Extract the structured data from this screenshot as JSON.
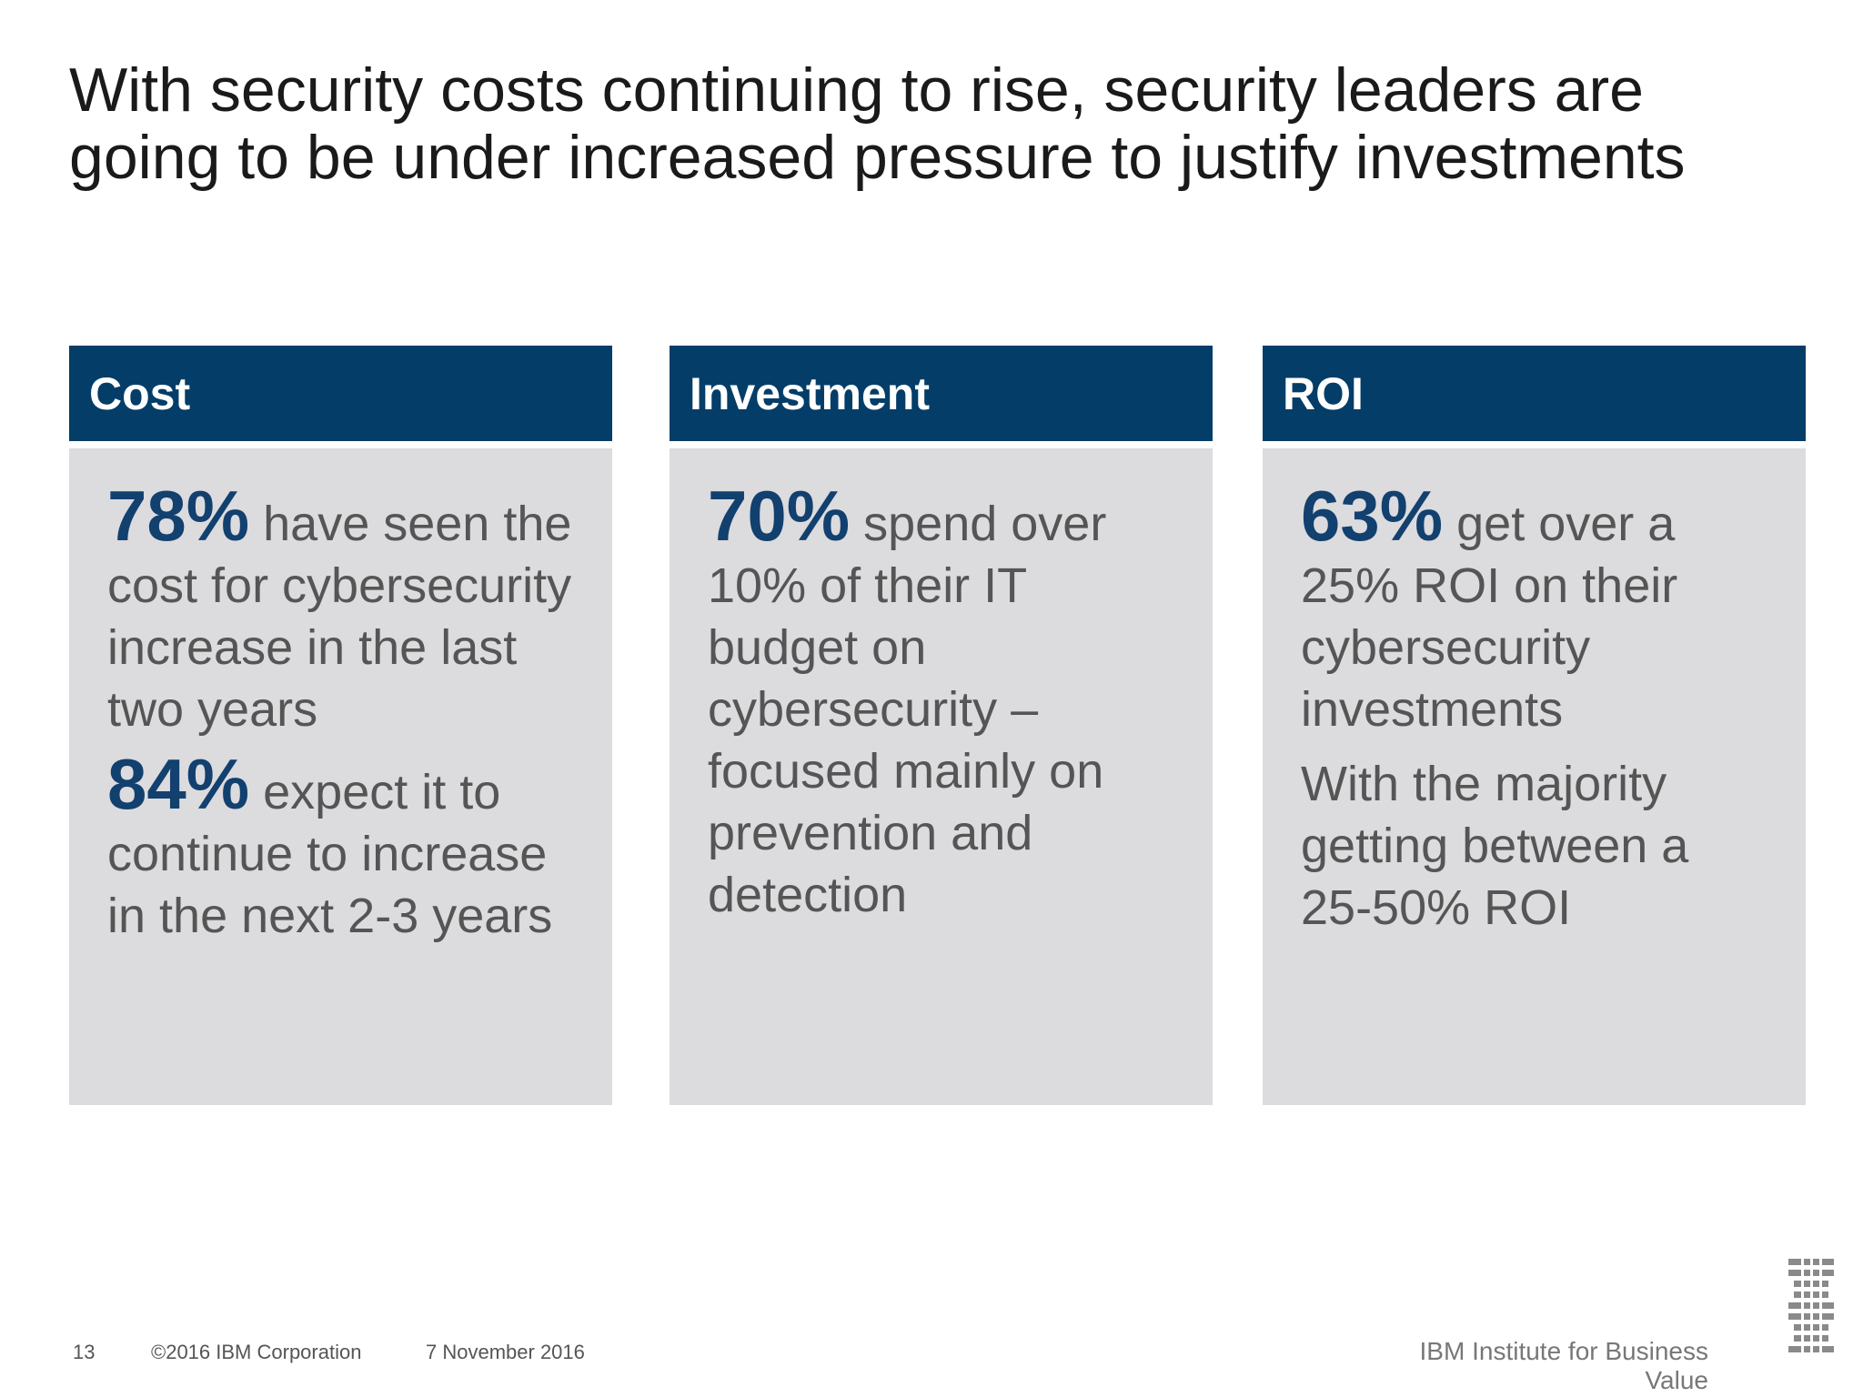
{
  "title": {
    "line1": "With security costs continuing to rise, security leaders are",
    "line2": "going to be under increased pressure to justify investments"
  },
  "cards": [
    {
      "header": "Cost",
      "paragraphs": [
        {
          "stat": "78%",
          "text": " have seen the cost for cybersecurity increase in the last two years"
        },
        {
          "stat": "84%",
          "text": " expect it to continue to increase in the next 2-3 years"
        }
      ]
    },
    {
      "header": "Investment",
      "paragraphs": [
        {
          "stat": "70%",
          "text": " spend over 10% of their IT budget on cybersecurity – focused mainly on prevention and detection"
        }
      ]
    },
    {
      "header": "ROI",
      "paragraphs": [
        {
          "stat": "63%",
          "text": " get over a 25% ROI on their cybersecurity investments"
        },
        {
          "text": "With the majority getting between a 25-50% ROI"
        }
      ]
    }
  ],
  "footer": {
    "page_number": "13",
    "copyright": "©2016 IBM Corporation",
    "date": "7 November 2016",
    "brand": "IBM Institute for Business Value"
  },
  "logo": {
    "icon": "ibm-logo-icon",
    "color": "#8a8a8a"
  },
  "colors": {
    "header_bg": "#033d68",
    "card_bg": "#dcdbdd",
    "stat_text": "#12406f",
    "body_text": "#555555"
  }
}
